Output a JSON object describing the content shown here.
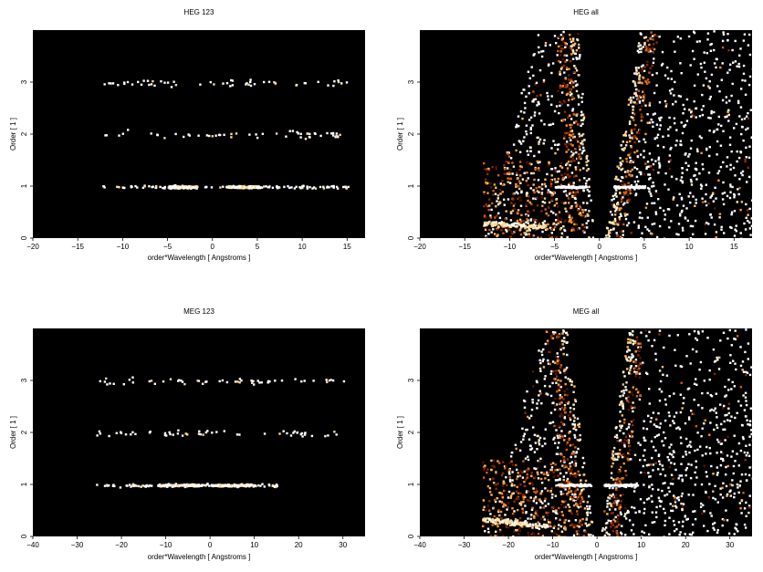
{
  "chart_data": [
    {
      "type": "heatmap",
      "title": "HEG 123",
      "xlabel": "order*Wavelength [ Angstroms ]",
      "ylabel": "Order [ 1 ]",
      "xlim": [
        -20,
        17
      ],
      "ylim": [
        0,
        4
      ],
      "xticks": [
        -20,
        -15,
        -10,
        -5,
        0,
        5,
        10,
        15
      ],
      "yticks": [
        0,
        1,
        2,
        3
      ],
      "grid": false,
      "background": "#000000",
      "bands": [
        {
          "order": 1,
          "x_min": -12.5,
          "x_max": 15.5,
          "bright_ranges": [
            [
              -5,
              -1.8
            ],
            [
              1.5,
              5
            ]
          ]
        },
        {
          "order": 2,
          "x_min": -12.5,
          "x_max": 14.5,
          "bright_ranges": []
        },
        {
          "order": 3,
          "x_min": -12.5,
          "x_max": 15.5,
          "bright_ranges": []
        }
      ]
    },
    {
      "type": "heatmap",
      "title": "HEG all",
      "xlabel": "order*Wavelength [ Angstroms ]",
      "ylabel": "Order [ 1 ]",
      "xlim": [
        -20,
        17
      ],
      "ylim": [
        0,
        4
      ],
      "xticks": [
        -20,
        -15,
        -10,
        -5,
        0,
        5,
        10,
        15
      ],
      "yticks": [
        0,
        1,
        2,
        3
      ],
      "grid": false,
      "background": "#000000",
      "bands": [
        {
          "order": 1,
          "x_min": -5,
          "x_max": 5,
          "bright_ranges": [
            [
              -5,
              -1.5
            ],
            [
              1.5,
              5
            ]
          ]
        }
      ]
    },
    {
      "type": "heatmap",
      "title": "MEG 123",
      "xlabel": "order*Wavelength [ Angstroms ]",
      "ylabel": "Order [ 1 ]",
      "xlim": [
        -40,
        35
      ],
      "ylim": [
        0,
        4
      ],
      "xticks": [
        -40,
        -30,
        -20,
        -10,
        0,
        10,
        20,
        30
      ],
      "yticks": [
        0,
        1,
        2,
        3
      ],
      "grid": false,
      "background": "#000000",
      "bands": [
        {
          "order": 1,
          "x_min": -26,
          "x_max": 15,
          "bright_ranges": [
            [
              -12,
              -2
            ],
            [
              0,
              10
            ]
          ]
        },
        {
          "order": 2,
          "x_min": -26,
          "x_max": 30,
          "bright_ranges": []
        },
        {
          "order": 3,
          "x_min": -26,
          "x_max": 30,
          "bright_ranges": []
        }
      ]
    },
    {
      "type": "heatmap",
      "title": "MEG all",
      "xlabel": "order*Wavelength [ Angstroms ]",
      "ylabel": "Order [ 1 ]",
      "xlim": [
        -40,
        35
      ],
      "ylim": [
        0,
        4
      ],
      "xticks": [
        -40,
        -30,
        -20,
        -10,
        0,
        10,
        20,
        30
      ],
      "yticks": [
        0,
        1,
        2,
        3
      ],
      "grid": false,
      "background": "#000000",
      "bands": [
        {
          "order": 1,
          "x_min": -12,
          "x_max": 9,
          "bright_ranges": [
            [
              -9,
              -1.5
            ],
            [
              1.5,
              9
            ]
          ]
        }
      ]
    }
  ]
}
